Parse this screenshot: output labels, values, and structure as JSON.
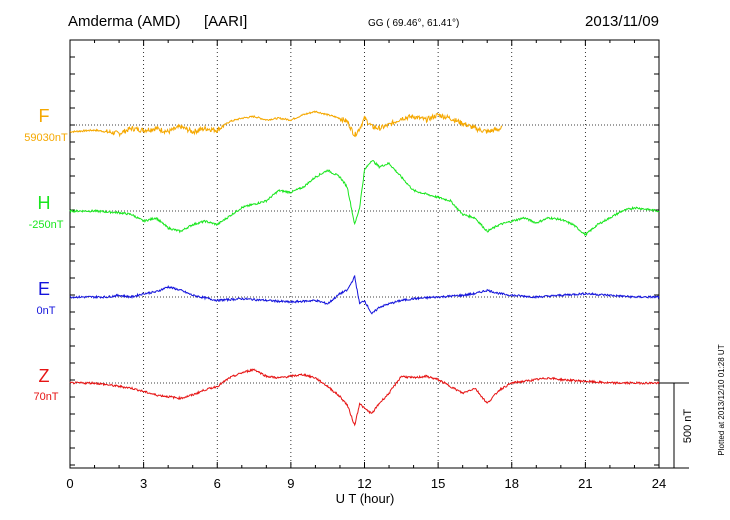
{
  "chart_data": {
    "type": "line",
    "station": "Amderma (AMD)",
    "institute": "[AARI]",
    "coords_label": "GG ( 69.46°,  61.41°)",
    "date": "2013/11/09",
    "xlabel": "U T (hour)",
    "xlim": [
      0,
      24
    ],
    "xticks": [
      0,
      3,
      6,
      9,
      12,
      15,
      18,
      21,
      24
    ],
    "scale_label": "500 nT",
    "scale_nT": 500,
    "plotted_label": "Plotted at 2013/12/10 01:28 UT",
    "colors": {
      "F": "#f5a800",
      "H": "#19e61e",
      "E": "#1414dc",
      "Z": "#e61414"
    },
    "series": [
      {
        "name": "F",
        "baseline_label": "59030nT",
        "end_hour": 17.6,
        "points": [
          [
            0,
            -40
          ],
          [
            1,
            -30
          ],
          [
            2,
            -50
          ],
          [
            2.5,
            -20
          ],
          [
            3,
            -30
          ],
          [
            3.5,
            -20
          ],
          [
            4,
            -40
          ],
          [
            4.5,
            -10
          ],
          [
            5,
            -40
          ],
          [
            5.5,
            -20
          ],
          [
            6,
            -30
          ],
          [
            6.5,
            20
          ],
          [
            7,
            40
          ],
          [
            7.5,
            50
          ],
          [
            8,
            30
          ],
          [
            8.5,
            40
          ],
          [
            9,
            30
          ],
          [
            9.5,
            60
          ],
          [
            10,
            80
          ],
          [
            10.5,
            60
          ],
          [
            11,
            40
          ],
          [
            11.3,
            20
          ],
          [
            11.6,
            -60
          ],
          [
            11.8,
            -20
          ],
          [
            12,
            40
          ],
          [
            12.3,
            -10
          ],
          [
            12.6,
            -20
          ],
          [
            13,
            0
          ],
          [
            13.5,
            40
          ],
          [
            14,
            50
          ],
          [
            14.5,
            30
          ],
          [
            15,
            60
          ],
          [
            15.5,
            40
          ],
          [
            16,
            10
          ],
          [
            16.5,
            -20
          ],
          [
            17,
            -40
          ],
          [
            17.6,
            -20
          ]
        ]
      },
      {
        "name": "H",
        "baseline_label": "-250nT",
        "points": [
          [
            0,
            0
          ],
          [
            1,
            0
          ],
          [
            2,
            -10
          ],
          [
            2.5,
            -20
          ],
          [
            3,
            -60
          ],
          [
            3.5,
            -40
          ],
          [
            4,
            -100
          ],
          [
            4.5,
            -120
          ],
          [
            5,
            -80
          ],
          [
            5.5,
            -60
          ],
          [
            6,
            -80
          ],
          [
            6.3,
            -50
          ],
          [
            7,
            20
          ],
          [
            7.5,
            40
          ],
          [
            8,
            60
          ],
          [
            8.5,
            120
          ],
          [
            9,
            110
          ],
          [
            9.5,
            140
          ],
          [
            10,
            200
          ],
          [
            10.5,
            240
          ],
          [
            11,
            200
          ],
          [
            11.3,
            140
          ],
          [
            11.6,
            -80
          ],
          [
            11.8,
            20
          ],
          [
            12,
            240
          ],
          [
            12.3,
            300
          ],
          [
            12.6,
            260
          ],
          [
            13,
            280
          ],
          [
            13.5,
            200
          ],
          [
            14,
            120
          ],
          [
            14.5,
            100
          ],
          [
            15,
            80
          ],
          [
            15.5,
            60
          ],
          [
            16,
            -20
          ],
          [
            16.5,
            -40
          ],
          [
            17,
            -120
          ],
          [
            17.5,
            -80
          ],
          [
            18,
            -60
          ],
          [
            18.5,
            -40
          ],
          [
            19,
            -70
          ],
          [
            19.5,
            -40
          ],
          [
            20,
            -50
          ],
          [
            20.5,
            -80
          ],
          [
            21,
            -140
          ],
          [
            21.5,
            -80
          ],
          [
            22,
            -40
          ],
          [
            22.5,
            0
          ],
          [
            23,
            20
          ],
          [
            24,
            0
          ]
        ]
      },
      {
        "name": "E",
        "baseline_label": "0nT",
        "points": [
          [
            0,
            0
          ],
          [
            1,
            0
          ],
          [
            1.5,
            0
          ],
          [
            2,
            10
          ],
          [
            2.5,
            0
          ],
          [
            3,
            20
          ],
          [
            3.5,
            30
          ],
          [
            4,
            60
          ],
          [
            4.5,
            40
          ],
          [
            5,
            10
          ],
          [
            6,
            -20
          ],
          [
            7,
            -10
          ],
          [
            8,
            -20
          ],
          [
            9,
            -30
          ],
          [
            10,
            -20
          ],
          [
            10.5,
            -40
          ],
          [
            11,
            20
          ],
          [
            11.3,
            40
          ],
          [
            11.6,
            120
          ],
          [
            11.8,
            -40
          ],
          [
            12,
            -20
          ],
          [
            12.3,
            -100
          ],
          [
            12.6,
            -60
          ],
          [
            13,
            -40
          ],
          [
            13.5,
            -20
          ],
          [
            14,
            -10
          ],
          [
            15,
            0
          ],
          [
            16,
            10
          ],
          [
            16.5,
            20
          ],
          [
            17,
            40
          ],
          [
            17.5,
            20
          ],
          [
            18,
            10
          ],
          [
            19,
            0
          ],
          [
            20,
            10
          ],
          [
            21,
            20
          ],
          [
            22,
            10
          ],
          [
            23,
            0
          ],
          [
            24,
            0
          ]
        ]
      },
      {
        "name": "Z",
        "baseline_label": "70nT",
        "points": [
          [
            0,
            0
          ],
          [
            1,
            0
          ],
          [
            1.5,
            -10
          ],
          [
            2,
            -20
          ],
          [
            2.5,
            -30
          ],
          [
            3,
            -50
          ],
          [
            3.5,
            -70
          ],
          [
            4,
            -80
          ],
          [
            4.5,
            -90
          ],
          [
            5,
            -70
          ],
          [
            5.5,
            -40
          ],
          [
            6,
            -20
          ],
          [
            6.5,
            30
          ],
          [
            7,
            60
          ],
          [
            7.5,
            80
          ],
          [
            8,
            40
          ],
          [
            8.5,
            30
          ],
          [
            9,
            40
          ],
          [
            9.5,
            50
          ],
          [
            10,
            30
          ],
          [
            10.5,
            -20
          ],
          [
            11,
            -80
          ],
          [
            11.3,
            -130
          ],
          [
            11.6,
            -250
          ],
          [
            11.8,
            -120
          ],
          [
            12,
            -150
          ],
          [
            12.3,
            -180
          ],
          [
            12.6,
            -120
          ],
          [
            13,
            -60
          ],
          [
            13.5,
            40
          ],
          [
            14,
            30
          ],
          [
            14.5,
            40
          ],
          [
            15,
            20
          ],
          [
            15.5,
            -20
          ],
          [
            16,
            -60
          ],
          [
            16.5,
            -30
          ],
          [
            17,
            -120
          ],
          [
            17.5,
            -40
          ],
          [
            18,
            0
          ],
          [
            18.5,
            10
          ],
          [
            19,
            20
          ],
          [
            19.5,
            30
          ],
          [
            20,
            20
          ],
          [
            21,
            10
          ],
          [
            22,
            0
          ],
          [
            23,
            0
          ],
          [
            24,
            0
          ]
        ]
      }
    ]
  }
}
